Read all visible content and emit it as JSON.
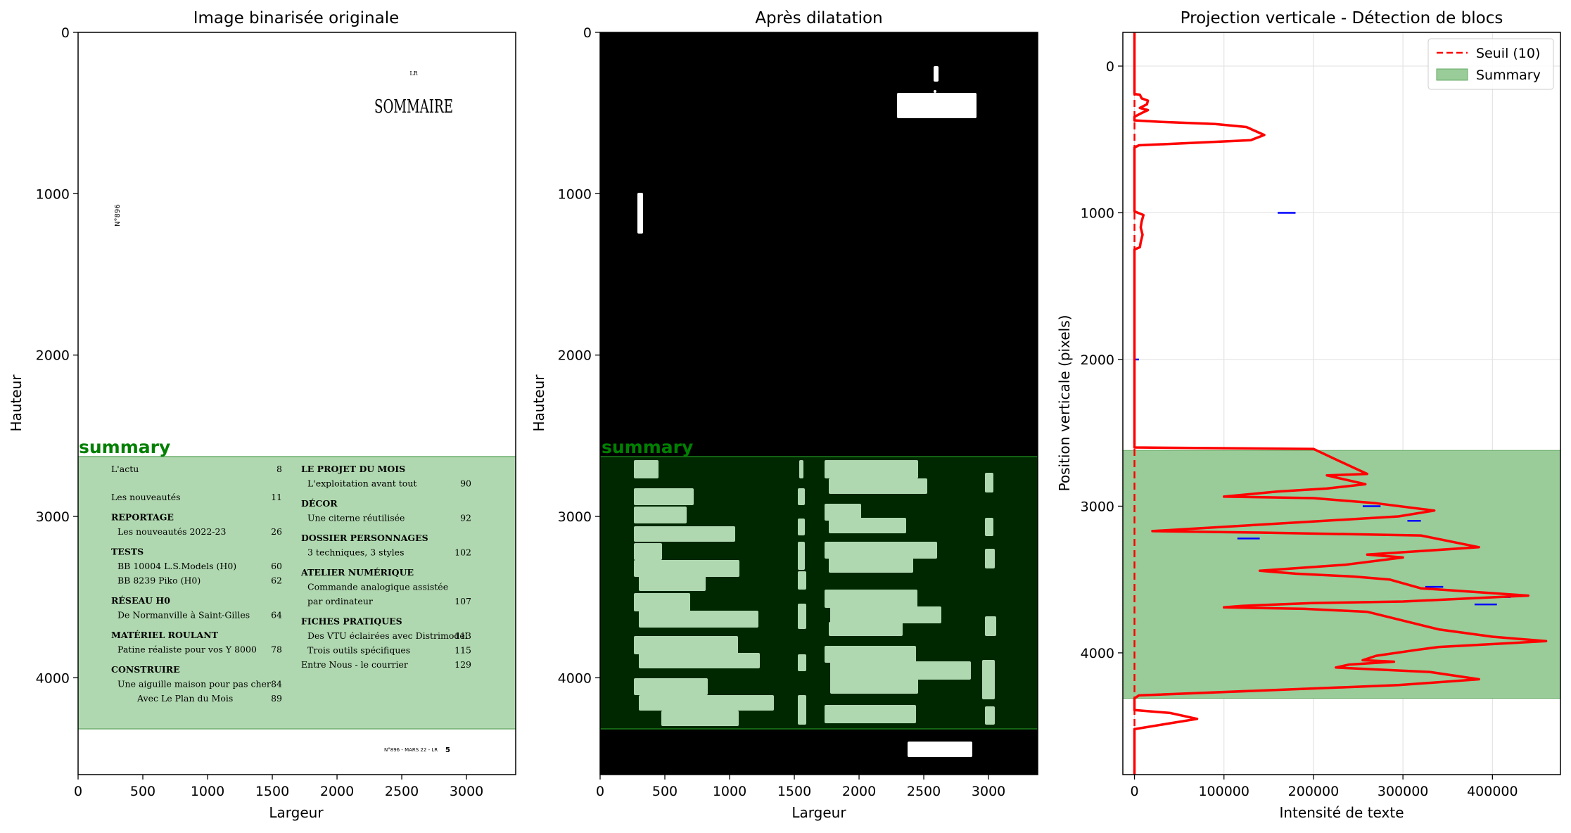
{
  "panel1": {
    "title": "Image binarisée originale",
    "xlabel": "Largeur",
    "ylabel": "Hauteur",
    "block_label": "summary"
  },
  "panel2": {
    "title": "Après dilatation",
    "xlabel": "Largeur",
    "ylabel": "Hauteur",
    "block_label": "summary"
  },
  "panel3": {
    "title": "Projection verticale - Détection de blocs",
    "xlabel": "Intensité de texte",
    "ylabel": "Position verticale (pixels)",
    "legend": {
      "threshold": "Seuil (10)",
      "summary": "Summary"
    }
  },
  "page_text": {
    "header_small": "LR",
    "sommaire": "SOMMAIRE",
    "issue_vertical": "N°896",
    "footer": "N°896 - MARS 22 - LR",
    "footer_page": "5",
    "left_column": [
      {
        "kind": "entry",
        "label": "L'actu",
        "page": "8"
      },
      {
        "kind": "entry",
        "label": "Les nouveautés",
        "page": "11"
      },
      {
        "kind": "heading",
        "label": "REPORTAGE",
        "page": ""
      },
      {
        "kind": "sub",
        "label": "Les nouveautés 2022-23",
        "page": "26"
      },
      {
        "kind": "heading",
        "label": "TESTS",
        "page": ""
      },
      {
        "kind": "sub",
        "label": "BB 10004 L.S.Models (H0)",
        "page": "60"
      },
      {
        "kind": "sub",
        "label": "BB 8239 Piko (H0)",
        "page": "62"
      },
      {
        "kind": "heading",
        "label": "RÉSEAU H0",
        "page": ""
      },
      {
        "kind": "sub",
        "label": "De Normanville à Saint-Gilles",
        "page": "64"
      },
      {
        "kind": "heading",
        "label": "MATÉRIEL ROULANT",
        "page": ""
      },
      {
        "kind": "sub",
        "label": "Patine réaliste pour vos Y 8000",
        "page": "78"
      },
      {
        "kind": "heading",
        "label": "CONSTRUIRE",
        "page": ""
      },
      {
        "kind": "sub",
        "label": "Une aiguille maison pour pas cher",
        "page": "84"
      },
      {
        "kind": "sub2",
        "label": "Avec Le Plan du Mois",
        "page": "89"
      }
    ],
    "right_column": [
      {
        "kind": "heading",
        "label": "LE PROJET DU MOIS",
        "page": ""
      },
      {
        "kind": "sub",
        "label": "L'exploitation avant tout",
        "page": "90"
      },
      {
        "kind": "heading",
        "label": "DÉCOR",
        "page": ""
      },
      {
        "kind": "sub",
        "label": "Une citerne réutilisée",
        "page": "92"
      },
      {
        "kind": "heading",
        "label": "DOSSIER PERSONNAGES",
        "page": ""
      },
      {
        "kind": "sub",
        "label": "3 techniques, 3 styles",
        "page": "102"
      },
      {
        "kind": "heading",
        "label": "ATELIER NUMÉRIQUE",
        "page": ""
      },
      {
        "kind": "sub",
        "label": "Commande analogique assistée",
        "page": ""
      },
      {
        "kind": "sub",
        "label": "par ordinateur",
        "page": "107"
      },
      {
        "kind": "heading",
        "label": "FICHES PRATIQUES",
        "page": ""
      },
      {
        "kind": "sub",
        "label": "Des VTU éclairées avec Distrimodel",
        "page": "113"
      },
      {
        "kind": "sub",
        "label": "Trois outils spécifiques",
        "page": "115"
      },
      {
        "kind": "entry",
        "label": "Entre Nous - le courrier",
        "page": "129"
      }
    ]
  },
  "chart_data": [
    {
      "type": "image",
      "title": "Image binarisée originale",
      "xlabel": "Largeur",
      "ylabel": "Hauteur",
      "xlim": [
        0,
        3380
      ],
      "ylim": [
        4600,
        0
      ],
      "xticks": [
        0,
        500,
        1000,
        1500,
        2000,
        2500,
        3000
      ],
      "yticks": [
        0,
        1000,
        2000,
        3000,
        4000
      ],
      "blocks": [
        {
          "label": "summary",
          "y_start": 2620,
          "y_end": 4310,
          "color": "#008000"
        }
      ]
    },
    {
      "type": "image",
      "title": "Après dilatation",
      "xlabel": "Largeur",
      "ylabel": "Hauteur",
      "xlim": [
        0,
        3380
      ],
      "ylim": [
        4600,
        0
      ],
      "xticks": [
        0,
        500,
        1000,
        1500,
        2000,
        2500,
        3000
      ],
      "yticks": [
        0,
        1000,
        2000,
        3000,
        4000
      ],
      "blocks": [
        {
          "label": "summary",
          "y_start": 2620,
          "y_end": 4310,
          "color": "#008000"
        }
      ]
    },
    {
      "type": "line",
      "title": "Projection verticale - Détection de blocs",
      "xlabel": "Intensité de texte",
      "ylabel": "Position verticale (pixels)",
      "xlim": [
        -13000,
        476000
      ],
      "ylim": [
        4830,
        -230
      ],
      "xticks": [
        0,
        100000,
        200000,
        300000,
        400000
      ],
      "yticks": [
        0,
        1000,
        2000,
        3000,
        4000
      ],
      "grid": true,
      "legend_position": "top-right",
      "threshold": {
        "name": "Seuil (10)",
        "value": 10,
        "color": "#ff0000"
      },
      "span": {
        "name": "Summary",
        "y_start": 2620,
        "y_end": 4310,
        "color": "#008000"
      },
      "series": [
        {
          "color": "#ff0000",
          "points": [
            [
              0,
              -230
            ],
            [
              0,
              190
            ],
            [
              6000,
              195
            ],
            [
              8000,
              220
            ],
            [
              15000,
              235
            ],
            [
              14000,
              260
            ],
            [
              6000,
              285
            ],
            [
              15000,
              300
            ],
            [
              8000,
              320
            ],
            [
              0,
              345
            ],
            [
              0,
              370
            ],
            [
              30000,
              380
            ],
            [
              90000,
              395
            ],
            [
              125000,
              415
            ],
            [
              145000,
              470
            ],
            [
              130000,
              505
            ],
            [
              60000,
              525
            ],
            [
              5000,
              540
            ],
            [
              0,
              555
            ],
            [
              0,
              990
            ],
            [
              4000,
              1000
            ],
            [
              10000,
              1015
            ],
            [
              8000,
              1060
            ],
            [
              7000,
              1100
            ],
            [
              9000,
              1150
            ],
            [
              7000,
              1200
            ],
            [
              6000,
              1235
            ],
            [
              0,
              1250
            ],
            [
              0,
              2600
            ],
            [
              200000,
              2610
            ],
            [
              228000,
              2690
            ],
            [
              260000,
              2780
            ],
            [
              215000,
              2790
            ],
            [
              258000,
              2850
            ],
            [
              215000,
              2880
            ],
            [
              160000,
              2900
            ],
            [
              100000,
              2935
            ],
            [
              200000,
              2945
            ],
            [
              270000,
              2980
            ],
            [
              335000,
              3030
            ],
            [
              295000,
              3070
            ],
            [
              20000,
              3170
            ],
            [
              140000,
              3180
            ],
            [
              320000,
              3200
            ],
            [
              385000,
              3280
            ],
            [
              260000,
              3330
            ],
            [
              300000,
              3350
            ],
            [
              235000,
              3400
            ],
            [
              140000,
              3440
            ],
            [
              180000,
              3460
            ],
            [
              245000,
              3480
            ],
            [
              285000,
              3500
            ],
            [
              320000,
              3560
            ],
            [
              440000,
              3610
            ],
            [
              300000,
              3650
            ],
            [
              200000,
              3660
            ],
            [
              120000,
              3680
            ],
            [
              100000,
              3690
            ],
            [
              190000,
              3700
            ],
            [
              260000,
              3720
            ],
            [
              340000,
              3840
            ],
            [
              400000,
              3890
            ],
            [
              460000,
              3920
            ],
            [
              340000,
              3960
            ],
            [
              315000,
              3980
            ],
            [
              270000,
              4020
            ],
            [
              255000,
              4050
            ],
            [
              290000,
              4060
            ],
            [
              240000,
              4080
            ],
            [
              225000,
              4100
            ],
            [
              330000,
              4130
            ],
            [
              385000,
              4180
            ],
            [
              295000,
              4220
            ],
            [
              5000,
              4290
            ],
            [
              0,
              4310
            ],
            [
              0,
              4390
            ],
            [
              40000,
              4410
            ],
            [
              70000,
              4450
            ],
            [
              40000,
              4480
            ],
            [
              0,
              4520
            ],
            [
              0,
              4830
            ]
          ]
        }
      ],
      "ticks_blue": [
        [
          3220,
          115000,
          140000
        ],
        [
          1000,
          160000,
          180000
        ],
        [
          2000,
          0,
          5000
        ],
        [
          3000,
          255000,
          275000
        ],
        [
          3100,
          305000,
          320000
        ],
        [
          3550,
          325000,
          345000
        ],
        [
          3620,
          405000,
          420000
        ],
        [
          3670,
          380000,
          405000
        ]
      ]
    }
  ]
}
